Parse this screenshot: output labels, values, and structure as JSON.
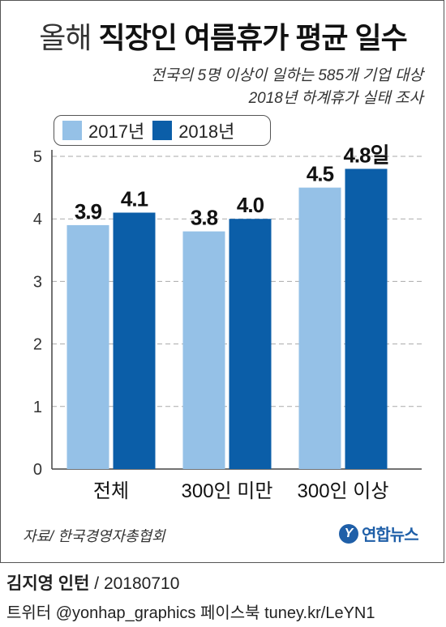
{
  "title": {
    "light": "올해",
    "bold": "직장인 여름휴가 평균 일수"
  },
  "subtitle": [
    "전국의 5명 이상이 일하는 585개 기업 대상",
    "2018년 하계휴가 실태 조사"
  ],
  "source": "자료/ 한국경영자총협회",
  "logo": {
    "mark": "Y",
    "text": "연합뉴스"
  },
  "credit": {
    "name": "김지영 인턴",
    "date": " / 20180710"
  },
  "social": "트위터 @yonhap_graphics  페이스북 tuney.kr/LeYN1",
  "colors": {
    "s2017": "#95c1e7",
    "s2018": "#0b5ea8"
  },
  "chart_data": {
    "type": "bar",
    "categories": [
      "전체",
      "300인 미만",
      "300인 이상"
    ],
    "series": [
      {
        "name": "2017년",
        "values": [
          3.9,
          3.8,
          4.5
        ],
        "labels": [
          "3.9",
          "3.8",
          "4.5"
        ]
      },
      {
        "name": "2018년",
        "values": [
          4.1,
          4.0,
          4.8
        ],
        "labels": [
          "4.1",
          "4.0",
          "4.8일"
        ]
      }
    ],
    "ylim": [
      0,
      5
    ],
    "yticks": [
      "0",
      "1",
      "2",
      "3",
      "4",
      "5"
    ],
    "grid": true,
    "legend": "top-left"
  }
}
